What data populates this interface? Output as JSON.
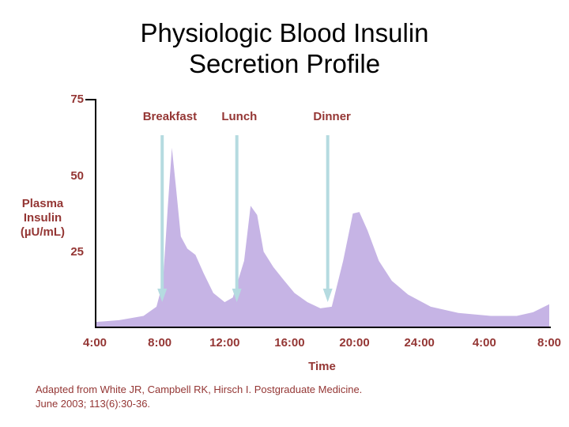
{
  "title": {
    "line1": "Physiologic Blood Insulin",
    "line2": "Secretion Profile"
  },
  "y_axis": {
    "label_lines": [
      "Plasma",
      "Insulin",
      "(µU/mL)"
    ],
    "ticks": [
      "75",
      "50",
      "25"
    ]
  },
  "x_axis": {
    "label": "Time",
    "ticks": [
      "4:00",
      "8:00",
      "12:00",
      "16:00",
      "20:00",
      "24:00",
      "4:00",
      "8:00"
    ]
  },
  "annotations": [
    {
      "label": "Breakfast",
      "arrow_t": 8.15
    },
    {
      "label": "Lunch",
      "arrow_t": 12.75
    },
    {
      "label": "Dinner",
      "arrow_t": 18.35
    }
  ],
  "citation": {
    "line1": "Adapted from White JR, Campbell RK, Hirsch I.  Postgraduate Medicine.",
    "line2": "June 2003; 113(6):30-36."
  },
  "colors": {
    "text": "#943634",
    "area": "#c6b4e5",
    "arrow": "#b5dbe0",
    "axis": "#000000"
  },
  "chart_data": {
    "type": "area",
    "title": "Physiologic Blood Insulin Secretion Profile",
    "xlabel": "Time",
    "ylabel": "Plasma Insulin (µU/mL)",
    "x_range": [
      4,
      32
    ],
    "y_range": [
      0,
      75
    ],
    "x_tick_t": [
      4,
      8,
      12,
      16,
      20,
      24,
      28,
      32
    ],
    "x_tick_labels": [
      "4:00",
      "8:00",
      "12:00",
      "16:00",
      "20:00",
      "24:00",
      "4:00",
      "8:00"
    ],
    "y_ticks": [
      25,
      50,
      75
    ],
    "series_name": "Plasma insulin",
    "points": [
      [
        4.0,
        2.0
      ],
      [
        5.5,
        2.6
      ],
      [
        7.0,
        4.0
      ],
      [
        7.8,
        7.0
      ],
      [
        8.2,
        15.0
      ],
      [
        8.5,
        40.0
      ],
      [
        8.75,
        59.0
      ],
      [
        9.0,
        46.0
      ],
      [
        9.3,
        30.0
      ],
      [
        9.7,
        26.0
      ],
      [
        10.2,
        24.0
      ],
      [
        10.7,
        18.0
      ],
      [
        11.3,
        11.5
      ],
      [
        12.0,
        8.5
      ],
      [
        12.5,
        10.0
      ],
      [
        13.2,
        22.0
      ],
      [
        13.6,
        40.0
      ],
      [
        14.0,
        37.0
      ],
      [
        14.4,
        25.0
      ],
      [
        15.0,
        20.0
      ],
      [
        15.6,
        16.0
      ],
      [
        16.3,
        11.5
      ],
      [
        17.1,
        8.5
      ],
      [
        17.9,
        6.5
      ],
      [
        18.6,
        7.0
      ],
      [
        19.3,
        22.0
      ],
      [
        19.9,
        37.5
      ],
      [
        20.3,
        38.0
      ],
      [
        20.8,
        32.0
      ],
      [
        21.5,
        22.0
      ],
      [
        22.3,
        15.5
      ],
      [
        23.3,
        11.0
      ],
      [
        24.7,
        7.0
      ],
      [
        26.4,
        5.0
      ],
      [
        28.4,
        4.0
      ],
      [
        30.0,
        4.0
      ],
      [
        31.0,
        5.2
      ],
      [
        32.0,
        7.8
      ]
    ],
    "annotations": [
      {
        "label": "Breakfast",
        "t": 8.15
      },
      {
        "label": "Lunch",
        "t": 12.75
      },
      {
        "label": "Dinner",
        "t": 18.35
      }
    ],
    "legend": "none",
    "grid": false
  }
}
